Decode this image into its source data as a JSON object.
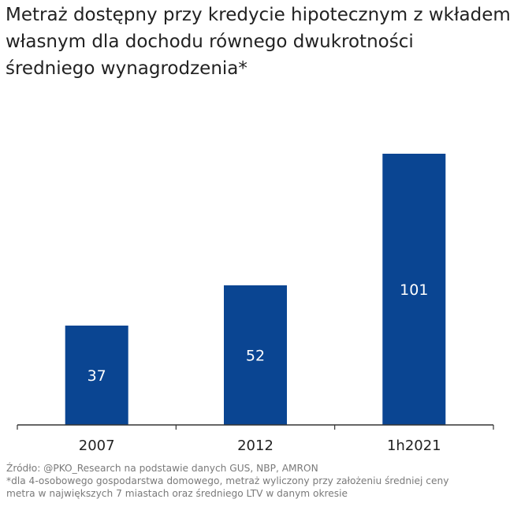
{
  "title_lines": [
    "Metraż dostępny przy kredycie hipotecznym z wkładem",
    "własnym dla dochodu równego dwukrotności",
    "średniego wynagrodzenia*"
  ],
  "footer": {
    "source": "Źródło: @PKO_Research na podstawie danych GUS, NBP, AMRON",
    "note_line1": "*dla 4-osobowego gospodarstwa domowego, metraż wyliczony przy założeniu średniej ceny",
    "note_line2": "metra w  największych 7 miastach oraz średniego LTV w danym okresie"
  },
  "chart_data": {
    "type": "bar",
    "title": "Metraż dostępny przy kredycie hipotecznym z wkładem własnym dla dochodu równego dwukrotności średniego wynagrodzenia*",
    "categories": [
      "2007",
      "2012",
      "1h2021"
    ],
    "values": [
      37,
      52,
      101
    ],
    "data_labels": [
      "37",
      "52",
      "101"
    ],
    "ylim": [
      0,
      101
    ],
    "grid": false,
    "legend": "none",
    "colors": {
      "bar": "#0a4592",
      "label": "#ffffff",
      "axis": "#333333"
    }
  }
}
